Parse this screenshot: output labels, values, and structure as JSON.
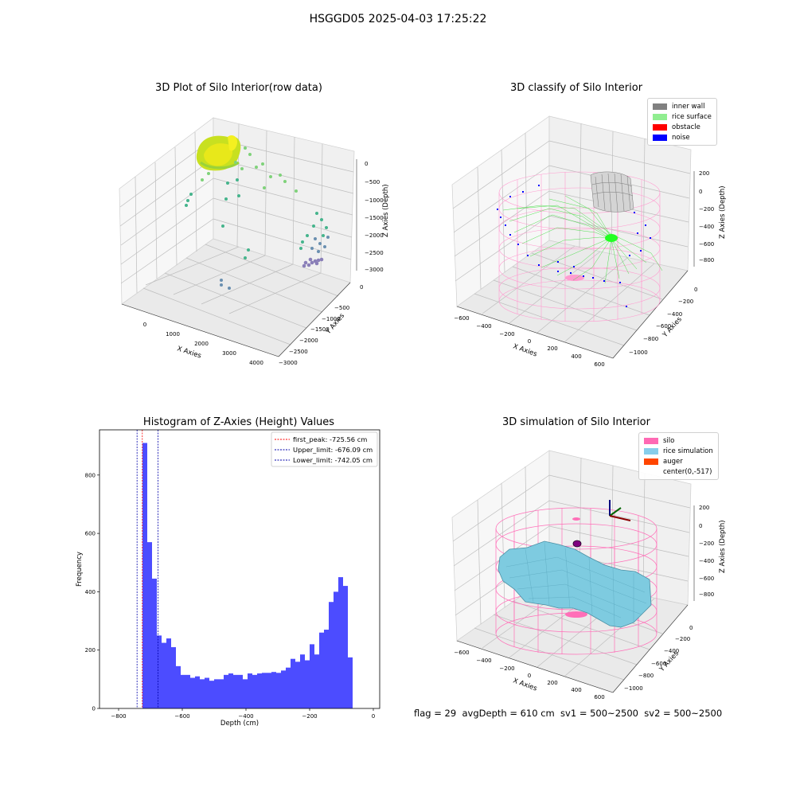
{
  "suptitle": "HSGGD05 2025-04-03 17:25:22",
  "panels": {
    "raw": {
      "title": "3D Plot of Silo Interior(row data)",
      "xlabel": "X Axies",
      "ylabel": "Y Axies",
      "zlabel": "Z Axies (Depth)",
      "xticks": [
        "0",
        "1000",
        "2000",
        "3000",
        "4000"
      ],
      "yticks": [
        "0",
        "−500",
        "−1000",
        "−1500",
        "−2000",
        "−2500",
        "−3000",
        "−3500"
      ],
      "zticks": [
        "0",
        "−500",
        "−1000",
        "−1500",
        "−2000",
        "−2500",
        "−3000"
      ]
    },
    "classify": {
      "title": "3D classify of Silo Interior",
      "xlabel": "X Axies",
      "ylabel": "Y Axies",
      "zlabel": "Z Axies (Depth)",
      "xticks": [
        "−600",
        "−400",
        "−200",
        "0",
        "200",
        "400",
        "600"
      ],
      "yticks": [
        "0",
        "−200",
        "−400",
        "−600",
        "−800",
        "−1000"
      ],
      "zticks": [
        "200",
        "0",
        "−200",
        "−400",
        "−600",
        "−800"
      ],
      "legend": [
        {
          "label": "inner wall",
          "color": "#808080"
        },
        {
          "label": "rice surface",
          "color": "#90ee90"
        },
        {
          "label": "obstacle",
          "color": "#ff0000"
        },
        {
          "label": "noise",
          "color": "#0000ff"
        }
      ]
    },
    "simulation": {
      "title": "3D simulation of Silo Interior",
      "xlabel": "X Axies",
      "ylabel": "Y Axies",
      "zlabel": "Z Axies (Depth)",
      "xticks": [
        "−600",
        "−400",
        "−200",
        "0",
        "200",
        "400",
        "600"
      ],
      "yticks": [
        "0",
        "−200",
        "−400",
        "−600",
        "−800",
        "−1000"
      ],
      "zticks": [
        "200",
        "0",
        "−200",
        "−400",
        "−600",
        "−800"
      ],
      "legend": [
        {
          "label": "silo",
          "color": "#ff69b4"
        },
        {
          "label": "rice simulation",
          "color": "#87ceeb"
        },
        {
          "label": "auger",
          "color": "#ff4500"
        },
        {
          "label": "center(0,-517)",
          "color": ""
        }
      ]
    }
  },
  "chart_data": [
    {
      "type": "scatter",
      "title": "3D Plot of Silo Interior(row data)",
      "xlabel": "X Axies",
      "ylabel": "Y Axies",
      "zlabel": "Z Axies (Depth)",
      "xlim": [
        -500,
        4500
      ],
      "ylim": [
        -3500,
        0
      ],
      "zlim": [
        -3000,
        0
      ]
    },
    {
      "type": "scatter",
      "title": "3D classify of Silo Interior",
      "xlabel": "X Axies",
      "ylabel": "Y Axies",
      "zlabel": "Z Axies (Depth)",
      "xlim": [
        -600,
        600
      ],
      "ylim": [
        -1000,
        0
      ],
      "zlim": [
        -800,
        200
      ],
      "legend_position": "top-right"
    },
    {
      "type": "histogram",
      "title": "Histogram of Z-Axies (Height) Values",
      "xlabel": "Depth (cm)",
      "ylabel": "Frequency",
      "xlim": [
        -860,
        20
      ],
      "ylim": [
        0,
        955
      ],
      "xticks": [
        "−800",
        "−600",
        "−400",
        "−200",
        "0"
      ],
      "yticks": [
        "0",
        "200",
        "400",
        "600",
        "800"
      ],
      "bin_width": 15,
      "bin_start": -725,
      "values": [
        910,
        570,
        445,
        250,
        225,
        240,
        210,
        145,
        115,
        115,
        105,
        110,
        100,
        105,
        95,
        100,
        100,
        115,
        120,
        115,
        115,
        100,
        120,
        115,
        120,
        122,
        122,
        125,
        122,
        130,
        140,
        170,
        160,
        185,
        165,
        220,
        185,
        260,
        270,
        365,
        400,
        450,
        420,
        175
      ],
      "color": "#0000ff",
      "vlines": [
        {
          "x": -725.56,
          "label": "first_peak: -725.56 cm",
          "color": "#ff0000"
        },
        {
          "x": -676.09,
          "label": "Upper_limit: -676.09 cm",
          "color": "#0000aa"
        },
        {
          "x": -742.05,
          "label": "Lower_limit: -742.05 cm",
          "color": "#0000aa"
        }
      ],
      "legend_position": "top-right"
    },
    {
      "type": "surface",
      "title": "3D simulation of Silo Interior",
      "xlabel": "X Axies",
      "ylabel": "Y Axies",
      "zlabel": "Z Axies (Depth)",
      "xlim": [
        -600,
        600
      ],
      "ylim": [
        -1000,
        0
      ],
      "zlim": [
        -800,
        200
      ],
      "legend_position": "top-right"
    }
  ],
  "status": {
    "text": "flag = 29  avgDepth = 610 cm  sv1 = 500~2500  sv2 = 500~2500"
  }
}
